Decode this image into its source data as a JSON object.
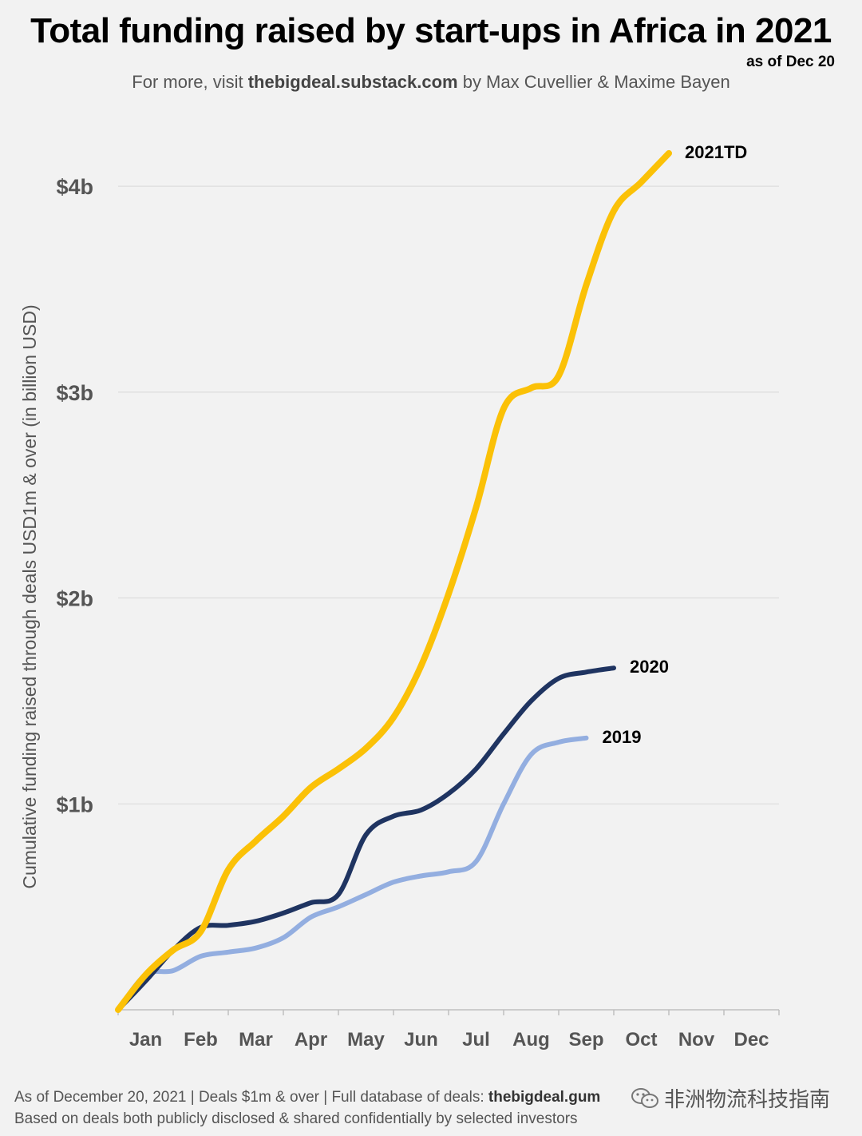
{
  "header": {
    "title": "Total funding raised by start-ups in Africa in 2021",
    "as_of": "as of Dec 20",
    "subtitle_prefix": "For more, visit ",
    "subtitle_site": "thebigdeal.substack.com",
    "subtitle_suffix": " by Max Cuvellier & Maxime Bayen"
  },
  "footer": {
    "line1_prefix": "As of December 20, 2021 | Deals $1m & over | Full database of deals: ",
    "line1_bold": "thebigdeal.gum",
    "line2": "Based on deals both publicly disclosed & shared confidentially by selected investors"
  },
  "watermark": {
    "text": "非洲物流科技指南",
    "icon": "wechat-icon"
  },
  "chart_data": {
    "type": "line",
    "title": "Total funding raised by start-ups in Africa in 2021",
    "ylabel": "Cumulative funding raised  through deals USD1m & over (in billion USD)",
    "xlabel": "",
    "categories": [
      "Jan",
      "Feb",
      "Mar",
      "Apr",
      "May",
      "Jun",
      "Jul",
      "Aug",
      "Sep",
      "Oct",
      "Nov",
      "Dec"
    ],
    "ylim": [
      0,
      4.4
    ],
    "yticks": [
      1,
      2,
      3,
      4
    ],
    "ytick_labels": [
      "$1b",
      "$2b",
      "$3b",
      "$4b"
    ],
    "grid": true,
    "x": [
      0,
      0.5,
      1,
      1.5,
      2,
      2.5,
      3,
      3.5,
      4,
      4.5,
      5,
      5.5,
      6,
      6.5,
      7,
      7.5,
      8,
      8.5,
      9,
      9.5,
      10,
      10.5,
      11,
      11.5,
      12
    ],
    "series": [
      {
        "name": "2021TD",
        "color": "#fbc107",
        "values": [
          0,
          0.17,
          0.29,
          0.38,
          0.68,
          0.82,
          0.94,
          1.08,
          1.17,
          1.27,
          1.42,
          1.67,
          2.02,
          2.44,
          2.92,
          3.02,
          3.08,
          3.52,
          3.88,
          4.02,
          4.16,
          null,
          null,
          null,
          null
        ]
      },
      {
        "name": "2020",
        "color": "#1f3461",
        "values": [
          0,
          0.14,
          0.29,
          0.4,
          0.41,
          0.43,
          0.47,
          0.52,
          0.56,
          0.85,
          0.94,
          0.97,
          1.05,
          1.17,
          1.34,
          1.5,
          1.61,
          1.64,
          1.66,
          null,
          null,
          null,
          null,
          null,
          null
        ]
      },
      {
        "name": "2019",
        "color": "#93aee0",
        "values": [
          0,
          0.17,
          0.19,
          0.26,
          0.28,
          0.3,
          0.35,
          0.45,
          0.5,
          0.56,
          0.62,
          0.65,
          0.67,
          0.72,
          1.0,
          1.24,
          1.3,
          1.32,
          null,
          null,
          null,
          null,
          null,
          null,
          null
        ]
      }
    ]
  }
}
